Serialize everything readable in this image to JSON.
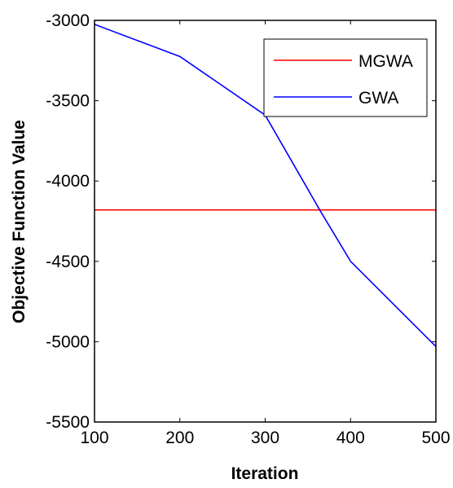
{
  "chart_data": {
    "type": "line",
    "title": "",
    "xlabel": "Iteration",
    "ylabel": "Objective Function Value",
    "xlim": [
      100,
      500
    ],
    "ylim": [
      -5500,
      -3000
    ],
    "x_ticks": [
      "100",
      "200",
      "300",
      "400",
      "500"
    ],
    "y_ticks": [
      "-3000",
      "-3500",
      "-4000",
      "-4500",
      "-5000",
      "-5500"
    ],
    "x_tick_values": [
      100,
      200,
      300,
      400,
      500
    ],
    "y_tick_values": [
      -3000,
      -3500,
      -4000,
      -4500,
      -5000,
      -5500
    ],
    "grid": false,
    "legend_position": "top-right",
    "series": [
      {
        "name": "MGWA",
        "color": "#ff0000",
        "x": [
          100,
          500
        ],
        "y": [
          -4180,
          -4180
        ]
      },
      {
        "name": "GWA",
        "color": "#0000ff",
        "x": [
          100,
          200,
          300,
          365,
          400,
          500
        ],
        "y": [
          -3025,
          -3225,
          -3590,
          -4190,
          -4500,
          -5030
        ]
      }
    ]
  }
}
